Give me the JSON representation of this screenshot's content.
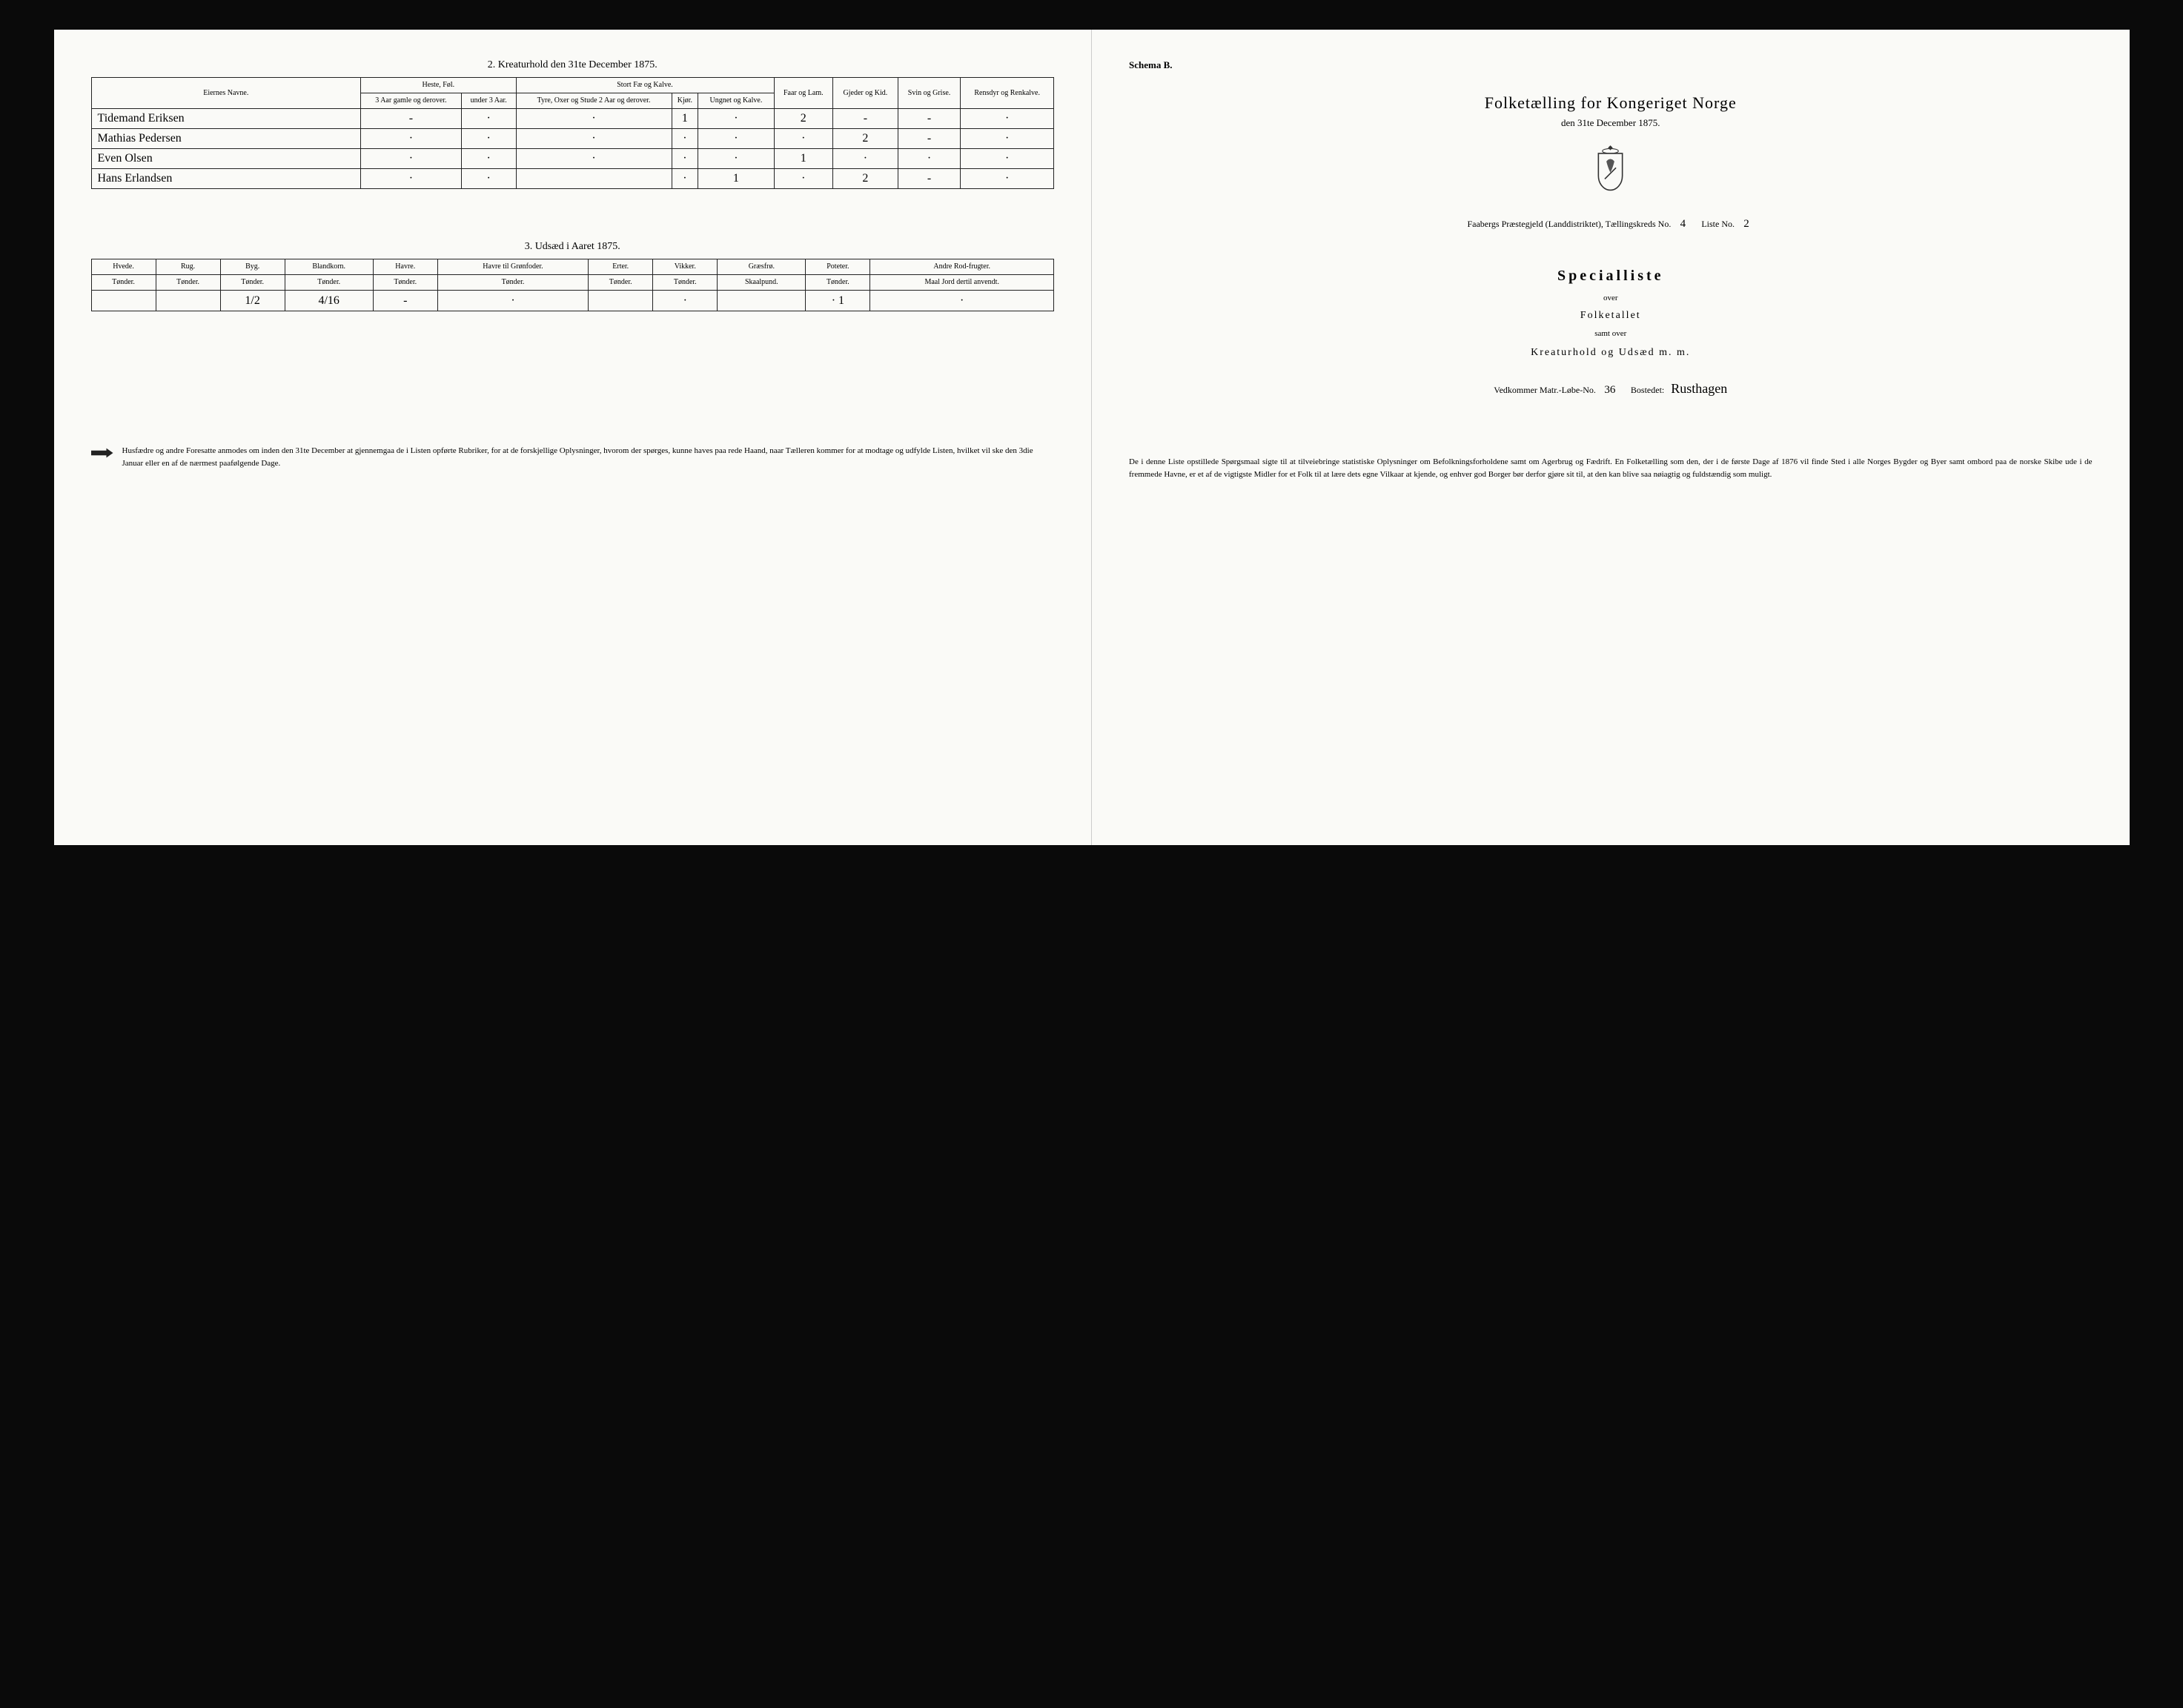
{
  "colors": {
    "paper": "#fafaf7",
    "ink": "#222222",
    "frame": "#0a0a0a",
    "rule": "#222222"
  },
  "left_page": {
    "section2": {
      "title": "2.  Kreaturhold den 31te December 1875.",
      "headers": {
        "name": "Eiernes Navne.",
        "heste": "Heste, Føl.",
        "heste_sub1": "3 Aar gamle og derover.",
        "heste_sub2": "under 3 Aar.",
        "stort": "Stort Fæ og Kalve.",
        "stort_sub1": "Tyre, Oxer og Stude 2 Aar og derover.",
        "stort_sub2": "Kjør.",
        "stort_sub3": "Ungnet og Kalve.",
        "faar": "Faar og Lam.",
        "gjeder": "Gjeder og Kid.",
        "svin": "Svin og Grise.",
        "ren": "Rensdyr og Renkalve."
      },
      "rows": [
        {
          "name": "Tidemand Eriksen",
          "v": [
            "-",
            "·",
            "·",
            "1",
            "·",
            "2",
            "-",
            "-",
            "·"
          ]
        },
        {
          "name": "Mathias Pedersen",
          "v": [
            "·",
            "·",
            "·",
            "·",
            "·",
            "·",
            "2",
            "-",
            "·"
          ]
        },
        {
          "name": "Even Olsen",
          "v": [
            "·",
            "·",
            "·",
            "·",
            "·",
            "1",
            "·",
            "·",
            "·"
          ]
        },
        {
          "name": "Hans Erlandsen",
          "v": [
            "·",
            "·",
            "",
            "·",
            "1",
            "·",
            "2",
            "-",
            "·"
          ]
        }
      ]
    },
    "section3": {
      "title": "3.  Udsæd i Aaret 1875.",
      "headers": [
        "Hvede.",
        "Rug.",
        "Byg.",
        "Blandkorn.",
        "Havre.",
        "Havre til Grønfoder.",
        "Erter.",
        "Vikker.",
        "Græsfrø.",
        "Poteter.",
        "Andre Rod-frugter."
      ],
      "units": [
        "Tønder.",
        "Tønder.",
        "Tønder.",
        "Tønder.",
        "Tønder.",
        "Tønder.",
        "Tønder.",
        "Tønder.",
        "Skaalpund.",
        "Tønder.",
        "Maal Jord dertil anvendt."
      ],
      "row": [
        "",
        "",
        "1/2",
        "4/16",
        "-",
        "·",
        "",
        "·",
        "",
        "· 1",
        "·"
      ]
    },
    "footer_note": "Husfædre og andre Foresatte anmodes om inden den 31te December at gjennemgaa de i Listen opførte Rubriker, for at de forskjellige Oplysninger, hvorom der spørges, kunne haves paa rede Haand, naar Tælleren kommer for at modtage og udfylde Listen, hvilket vil ske den 3die Januar eller en af de nærmest paafølgende Dage."
  },
  "right_page": {
    "schema": "Schema B.",
    "main_title": "Folketælling for Kongeriget Norge",
    "date_line": "den 31te December 1875.",
    "district_prefix": "Faabergs Præstegjeld (Landdistriktet), Tællingskreds No.",
    "kreds_no": "4",
    "liste_label": "Liste No.",
    "liste_no": "2",
    "special_title": "Specialliste",
    "over": "over",
    "folketallet": "Folketallet",
    "samt_over": "samt over",
    "kreatur_line": "Kreaturhold og Udsæd m. m.",
    "vedkommer_label": "Vedkommer Matr.-Løbe-No.",
    "matr_no": "36",
    "bostedet_label": "Bostedet:",
    "bostedet": "Rusthagen",
    "footer_para": "De i denne Liste opstillede Spørgsmaal sigte til at tilveiebringe statistiske Oplysninger om Befolkningsforholdene samt om Agerbrug og Fædrift. En Folketælling som den, der i de første Dage af 1876 vil finde Sted i alle Norges Bygder og Byer samt ombord paa de norske Skibe ude i de fremmede Havne, er et af de vigtigste Midler for et Folk til at lære dets egne Vilkaar at kjende, og enhver god Borger bør derfor gjøre sit til, at den kan blive saa nøiagtig og fuldstændig som muligt."
  }
}
